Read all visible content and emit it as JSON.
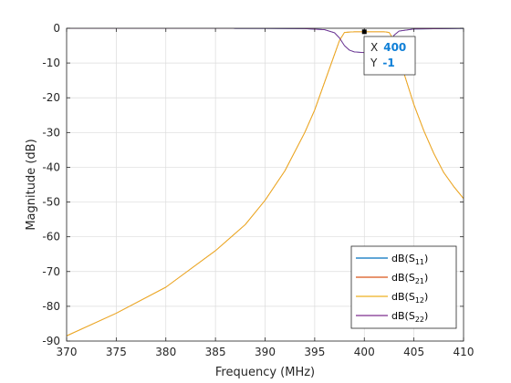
{
  "chart_data": {
    "type": "line",
    "title": "",
    "xlabel": "Frequency (MHz)",
    "ylabel": "Magnitude (dB)",
    "xlim": [
      370,
      410
    ],
    "ylim": [
      -90,
      0
    ],
    "xticks": [
      370,
      375,
      380,
      385,
      390,
      395,
      400,
      405,
      410
    ],
    "yticks": [
      0,
      -10,
      -20,
      -30,
      -40,
      -50,
      -60,
      -70,
      -80,
      -90
    ],
    "grid": true,
    "legend": {
      "placement": "bottom-right",
      "entries": [
        {
          "prefix": "dB(S",
          "sub": "11",
          "suffix": ")",
          "color": "#0072bd"
        },
        {
          "prefix": "dB(S",
          "sub": "21",
          "suffix": ")",
          "color": "#d95319"
        },
        {
          "prefix": "dB(S",
          "sub": "12",
          "suffix": ")",
          "color": "#edb120"
        },
        {
          "prefix": "dB(S",
          "sub": "22",
          "suffix": ")",
          "color": "#7e2f8e"
        }
      ]
    },
    "series": [
      {
        "color": "#0072bd",
        "x": [
          370,
          386.8,
          387,
          390,
          394,
          396,
          397,
          397.5,
          398,
          398.5,
          399,
          400,
          401,
          402,
          402.5,
          403,
          403.5,
          405,
          410
        ],
        "y": [
          0,
          0,
          -0.05,
          -0.05,
          -0.1,
          -0.4,
          -1.3,
          -2.8,
          -5.0,
          -6.3,
          -6.8,
          -7.0,
          -6.8,
          -6.3,
          -4.5,
          -2.0,
          -0.8,
          -0.2,
          -0.05
        ]
      },
      {
        "color": "#d95319",
        "x": [
          370,
          375,
          380,
          385,
          388,
          390,
          392,
          394,
          395,
          396,
          397,
          397.5,
          398,
          399,
          400,
          401,
          402,
          402.5,
          403,
          403.5,
          404,
          405,
          406,
          407,
          408,
          409,
          410
        ],
        "y": [
          -88.5,
          -82,
          -74.5,
          -64,
          -56.5,
          -49.5,
          -41,
          -30,
          -23.5,
          -15.5,
          -7.5,
          -3.5,
          -1.2,
          -1,
          -1,
          -1,
          -1,
          -1.2,
          -3.5,
          -7,
          -13,
          -22,
          -29.5,
          -36,
          -41.5,
          -45.5,
          -49
        ]
      },
      {
        "color": "#edb120",
        "x": [
          370,
          375,
          380,
          385,
          388,
          390,
          392,
          394,
          395,
          396,
          397,
          397.5,
          398,
          399,
          400,
          401,
          402,
          402.5,
          403,
          403.5,
          404,
          405,
          406,
          407,
          408,
          409,
          410
        ],
        "y": [
          -88.5,
          -82,
          -74.5,
          -64,
          -56.5,
          -49.5,
          -41,
          -30,
          -23.5,
          -15.5,
          -7.5,
          -3.5,
          -1.2,
          -1,
          -1,
          -1,
          -1,
          -1.2,
          -3.5,
          -7,
          -13,
          -22,
          -29.5,
          -36,
          -41.5,
          -45.5,
          -49
        ]
      },
      {
        "color": "#7e2f8e",
        "x": [
          370,
          386.8,
          387,
          390,
          394,
          396,
          397,
          397.5,
          398,
          398.5,
          399,
          400,
          401,
          402,
          402.5,
          403,
          403.5,
          405,
          410
        ],
        "y": [
          0,
          0,
          -0.05,
          -0.05,
          -0.1,
          -0.4,
          -1.3,
          -2.8,
          -5.0,
          -6.3,
          -6.8,
          -7.0,
          -6.8,
          -6.3,
          -4.5,
          -2.0,
          -0.8,
          -0.2,
          -0.05
        ]
      }
    ],
    "datatip": {
      "x": 400,
      "y": -1,
      "x_label": "X",
      "x_value": "400",
      "y_label": "Y",
      "y_value": "-1"
    }
  }
}
